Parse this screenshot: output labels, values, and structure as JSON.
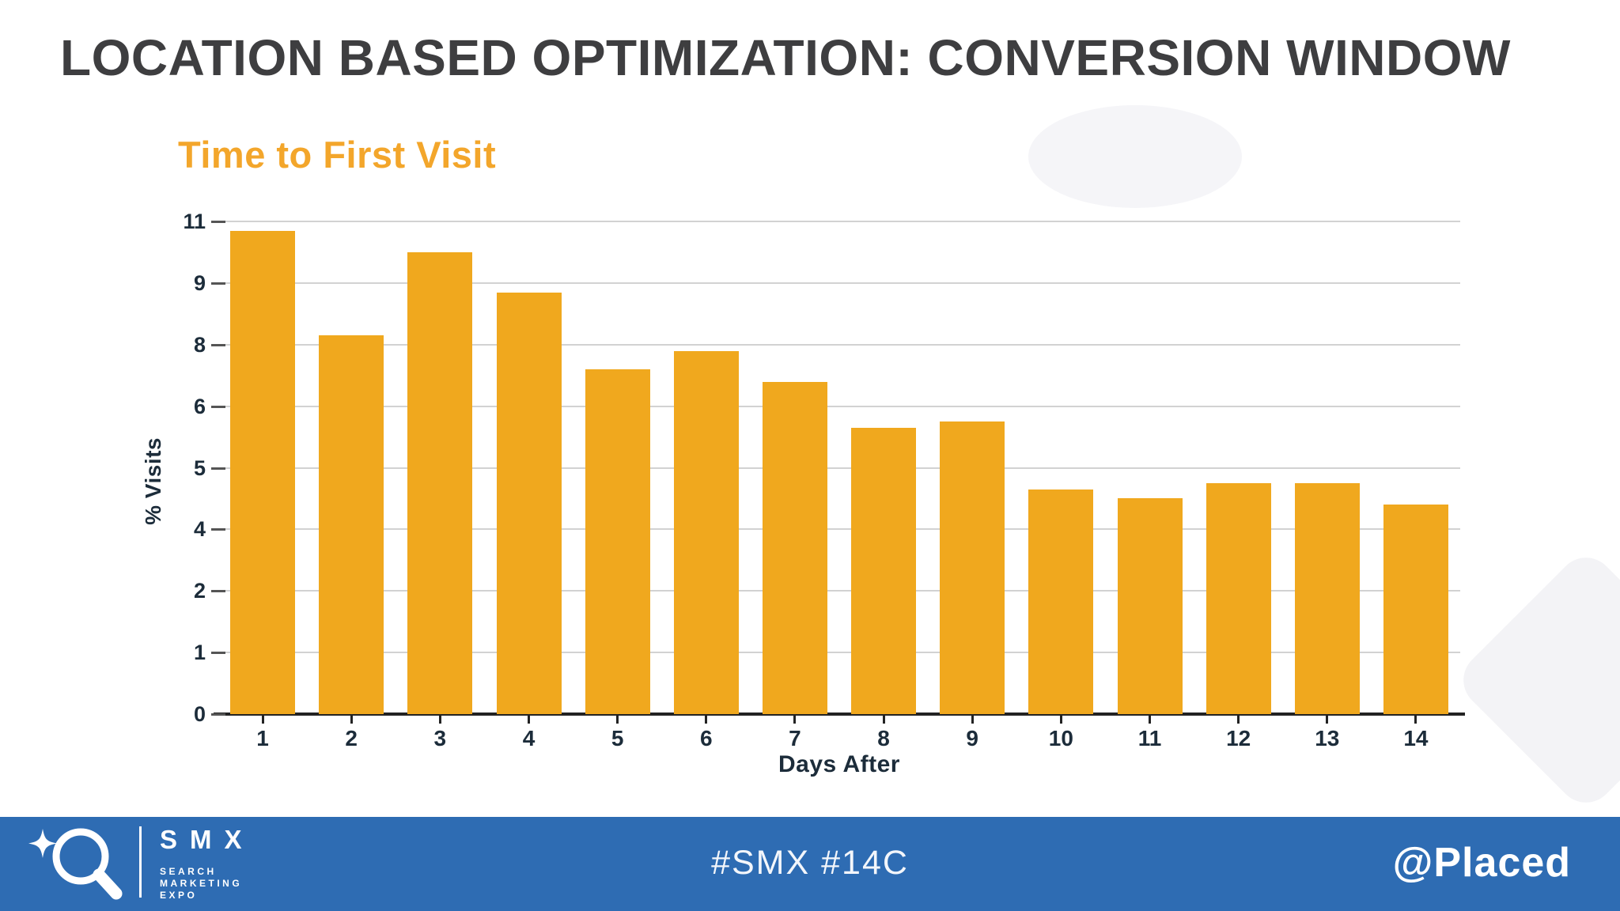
{
  "slide": {
    "title": "LOCATION BASED OPTIMIZATION: CONVERSION WINDOW"
  },
  "chart_data": {
    "type": "bar",
    "title": "Time to First Visit",
    "xlabel": "Days After",
    "ylabel": "% Visits",
    "categories": [
      "1",
      "2",
      "3",
      "4",
      "5",
      "6",
      "7",
      "8",
      "9",
      "10",
      "11",
      "12",
      "13",
      "14"
    ],
    "values": [
      10.7,
      8.15,
      10.0,
      8.85,
      7.2,
      7.8,
      6.8,
      5.65,
      5.75,
      4.65,
      4.5,
      4.75,
      4.75,
      4.4
    ],
    "y_ticks_bottom_up": [
      0,
      1,
      2,
      4,
      5,
      6,
      8,
      9,
      11
    ],
    "y_ticks_top_down_labels": [
      "11",
      "9",
      "8",
      "6",
      "5",
      "4",
      "2",
      "1",
      "0"
    ],
    "grid": true,
    "legend": "none",
    "bar_color": "#f0a81e"
  },
  "footer": {
    "hashtags": "#SMX #14C",
    "handle": "@Placed",
    "logo": {
      "icon": "magnifier-sparkle-icon",
      "brand": "SMX",
      "tagline": [
        "SEARCH",
        "MARKETING",
        "EXPO"
      ]
    }
  },
  "colors": {
    "background": "#ffffff",
    "slide_title": "#3e3e40",
    "chart_title": "#f3a62b",
    "bar": "#f0a81e",
    "axis_text": "#1c2c3a",
    "axis_line": "#232323",
    "gridline": "#d2d2d2",
    "footer_background": "#2e6cb3",
    "footer_text": "#ffffff",
    "decoration": "#f3f3f6"
  }
}
